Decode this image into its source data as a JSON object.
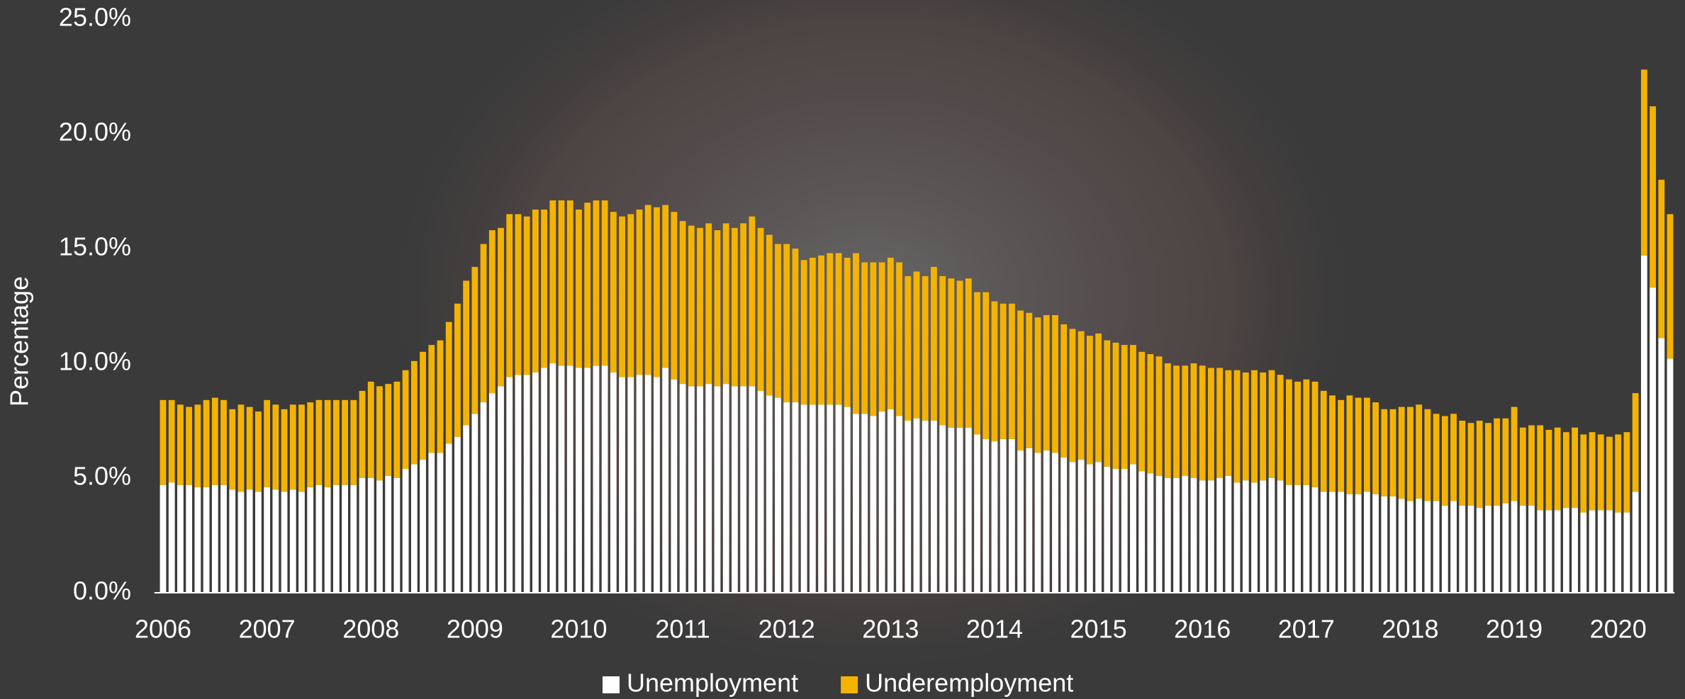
{
  "chart_data": {
    "type": "bar",
    "stacked": true,
    "y_label": "Percentage",
    "legend": "bottom",
    "categories": [
      "2006",
      null,
      null,
      null,
      null,
      null,
      null,
      null,
      null,
      null,
      null,
      null,
      "2007",
      null,
      null,
      null,
      null,
      null,
      null,
      null,
      null,
      null,
      null,
      null,
      "2008",
      null,
      null,
      null,
      null,
      null,
      null,
      null,
      null,
      null,
      null,
      null,
      "2009",
      null,
      null,
      null,
      null,
      null,
      null,
      null,
      null,
      null,
      null,
      null,
      "2010",
      null,
      null,
      null,
      null,
      null,
      null,
      null,
      null,
      null,
      null,
      null,
      "2011",
      null,
      null,
      null,
      null,
      null,
      null,
      null,
      null,
      null,
      null,
      null,
      "2012",
      null,
      null,
      null,
      null,
      null,
      null,
      null,
      null,
      null,
      null,
      null,
      "2013",
      null,
      null,
      null,
      null,
      null,
      null,
      null,
      null,
      null,
      null,
      null,
      "2014",
      null,
      null,
      null,
      null,
      null,
      null,
      null,
      null,
      null,
      null,
      null,
      "2015",
      null,
      null,
      null,
      null,
      null,
      null,
      null,
      null,
      null,
      null,
      null,
      "2016",
      null,
      null,
      null,
      null,
      null,
      null,
      null,
      null,
      null,
      null,
      null,
      "2017",
      null,
      null,
      null,
      null,
      null,
      null,
      null,
      null,
      null,
      null,
      null,
      "2018",
      null,
      null,
      null,
      null,
      null,
      null,
      null,
      null,
      null,
      null,
      null,
      "2019",
      null,
      null,
      null,
      null,
      null,
      null,
      null,
      null,
      null,
      null,
      null,
      "2020",
      null,
      null,
      null,
      null,
      null,
      null
    ],
    "series": [
      {
        "name": "Unemployment",
        "color": "#ffffff",
        "values": [
          4.7,
          4.8,
          4.7,
          4.7,
          4.6,
          4.6,
          4.7,
          4.7,
          4.5,
          4.4,
          4.5,
          4.4,
          4.6,
          4.5,
          4.4,
          4.5,
          4.4,
          4.6,
          4.7,
          4.6,
          4.7,
          4.7,
          4.7,
          5.0,
          5.0,
          4.9,
          5.1,
          5.0,
          5.4,
          5.6,
          5.8,
          6.1,
          6.1,
          6.5,
          6.8,
          7.3,
          7.8,
          8.3,
          8.7,
          9.0,
          9.4,
          9.5,
          9.5,
          9.6,
          9.8,
          10.0,
          9.9,
          9.9,
          9.8,
          9.8,
          9.9,
          9.9,
          9.6,
          9.4,
          9.4,
          9.5,
          9.5,
          9.4,
          9.8,
          9.3,
          9.1,
          9.0,
          9.0,
          9.1,
          9.0,
          9.1,
          9.0,
          9.0,
          9.0,
          8.8,
          8.6,
          8.5,
          8.3,
          8.3,
          8.2,
          8.2,
          8.2,
          8.2,
          8.2,
          8.1,
          7.8,
          7.8,
          7.7,
          7.9,
          8.0,
          7.7,
          7.5,
          7.6,
          7.5,
          7.5,
          7.3,
          7.2,
          7.2,
          7.2,
          6.9,
          6.7,
          6.6,
          6.7,
          6.7,
          6.2,
          6.3,
          6.1,
          6.2,
          6.1,
          5.9,
          5.7,
          5.8,
          5.6,
          5.7,
          5.5,
          5.4,
          5.4,
          5.6,
          5.3,
          5.2,
          5.1,
          5.0,
          5.0,
          5.1,
          5.0,
          4.9,
          4.9,
          5.0,
          5.1,
          4.8,
          4.9,
          4.8,
          4.9,
          5.0,
          4.9,
          4.7,
          4.7,
          4.7,
          4.6,
          4.4,
          4.4,
          4.4,
          4.3,
          4.3,
          4.4,
          4.3,
          4.2,
          4.2,
          4.1,
          4.0,
          4.1,
          4.0,
          4.0,
          3.8,
          4.0,
          3.8,
          3.8,
          3.7,
          3.8,
          3.8,
          3.9,
          4.0,
          3.8,
          3.8,
          3.6,
          3.6,
          3.6,
          3.7,
          3.7,
          3.5,
          3.6,
          3.6,
          3.6,
          3.5,
          3.5,
          4.4,
          14.7,
          13.3,
          11.1,
          10.2
        ]
      },
      {
        "name": "Underemployment",
        "color": "#f5b301",
        "values": [
          3.7,
          3.6,
          3.5,
          3.4,
          3.6,
          3.8,
          3.8,
          3.7,
          3.5,
          3.8,
          3.6,
          3.5,
          3.8,
          3.7,
          3.6,
          3.7,
          3.8,
          3.7,
          3.7,
          3.8,
          3.7,
          3.7,
          3.7,
          3.8,
          4.2,
          4.1,
          4.0,
          4.2,
          4.3,
          4.5,
          4.7,
          4.7,
          4.9,
          5.3,
          5.8,
          6.3,
          6.4,
          6.9,
          7.1,
          6.9,
          7.1,
          7.0,
          6.9,
          7.1,
          6.9,
          7.1,
          7.2,
          7.2,
          6.9,
          7.2,
          7.2,
          7.2,
          7.0,
          7.0,
          7.1,
          7.2,
          7.4,
          7.4,
          7.1,
          7.3,
          7.1,
          7.0,
          6.9,
          7.0,
          6.8,
          7.0,
          6.9,
          7.1,
          7.4,
          7.1,
          7.0,
          6.7,
          6.9,
          6.7,
          6.3,
          6.4,
          6.5,
          6.6,
          6.6,
          6.5,
          7.0,
          6.6,
          6.7,
          6.5,
          6.6,
          6.7,
          6.3,
          6.4,
          6.3,
          6.7,
          6.5,
          6.5,
          6.4,
          6.5,
          6.2,
          6.4,
          6.1,
          5.9,
          5.9,
          6.1,
          5.9,
          5.9,
          5.9,
          6.0,
          5.8,
          5.8,
          5.6,
          5.6,
          5.6,
          5.5,
          5.5,
          5.4,
          5.2,
          5.2,
          5.2,
          5.2,
          5.0,
          4.9,
          4.8,
          5.0,
          5.0,
          4.9,
          4.8,
          4.6,
          4.9,
          4.7,
          4.9,
          4.7,
          4.7,
          4.6,
          4.6,
          4.5,
          4.6,
          4.6,
          4.4,
          4.2,
          4.0,
          4.3,
          4.2,
          4.1,
          4.0,
          3.8,
          3.8,
          4.0,
          4.1,
          4.1,
          4.0,
          3.8,
          3.9,
          3.8,
          3.7,
          3.6,
          3.8,
          3.6,
          3.8,
          3.7,
          4.1,
          3.4,
          3.5,
          3.7,
          3.5,
          3.6,
          3.3,
          3.5,
          3.4,
          3.4,
          3.3,
          3.2,
          3.4,
          3.5,
          4.3,
          8.1,
          7.9,
          6.9,
          6.3
        ]
      }
    ],
    "ylim": [
      0,
      25
    ],
    "yticks": [
      {
        "value": 0,
        "label": "0.0%"
      },
      {
        "value": 5,
        "label": "5.0%"
      },
      {
        "value": 10,
        "label": "10.0%"
      },
      {
        "value": 15,
        "label": "15.0%"
      },
      {
        "value": 20,
        "label": "20.0%"
      },
      {
        "value": 25,
        "label": "25.0%"
      }
    ]
  }
}
